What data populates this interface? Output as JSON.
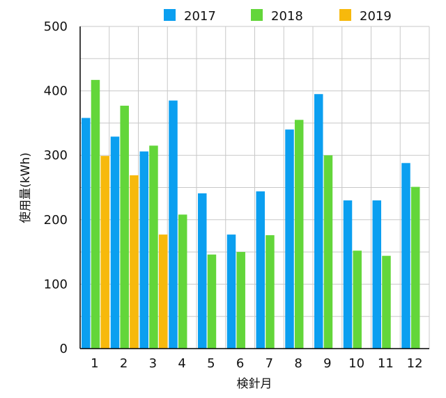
{
  "chart_data": {
    "type": "bar",
    "title": "",
    "xlabel": "検針月",
    "ylabel": "使用量(kWh)",
    "ylim": [
      0,
      500
    ],
    "yticks": [
      0,
      100,
      200,
      300,
      400,
      500
    ],
    "grid": true,
    "legend_position": "top",
    "categories": [
      "1",
      "2",
      "3",
      "4",
      "5",
      "6",
      "7",
      "8",
      "9",
      "10",
      "11",
      "12"
    ],
    "series": [
      {
        "name": "2017",
        "color": "#0b9ff0",
        "values": [
          358,
          329,
          306,
          385,
          241,
          177,
          244,
          340,
          395,
          230,
          230,
          288
        ]
      },
      {
        "name": "2018",
        "color": "#63d63a",
        "values": [
          417,
          377,
          315,
          208,
          146,
          150,
          176,
          355,
          300,
          152,
          144,
          251
        ]
      },
      {
        "name": "2019",
        "color": "#f7b90c",
        "values": [
          299,
          269,
          177,
          null,
          null,
          null,
          null,
          null,
          null,
          null,
          null,
          null
        ]
      }
    ]
  }
}
